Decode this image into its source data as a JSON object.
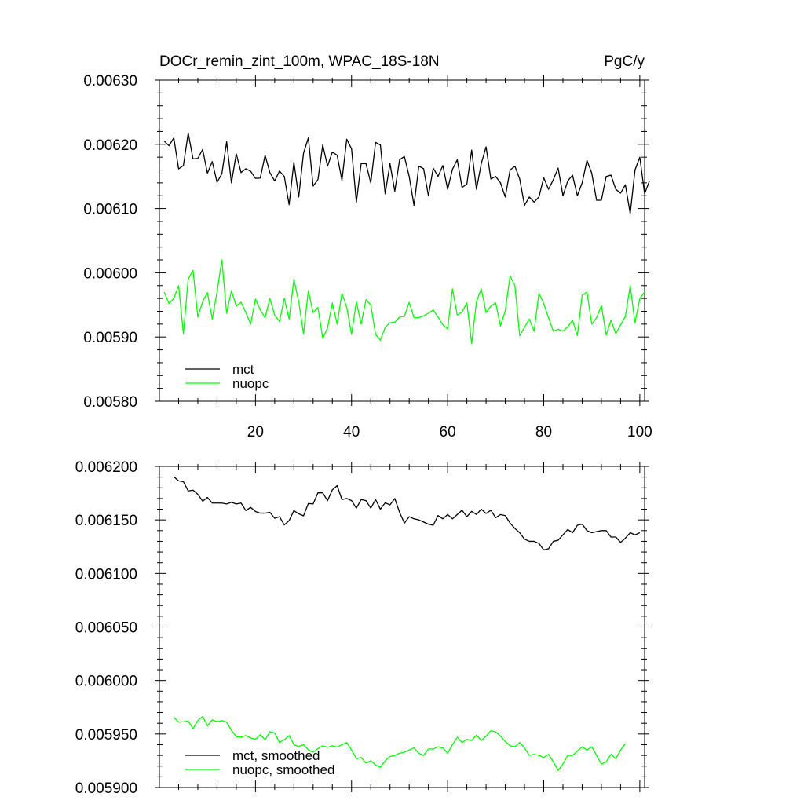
{
  "figure": {
    "title_left": "DOCr_remin_zint_100m, WPAC_18S-18N",
    "title_right": "PgC/y"
  },
  "colors": {
    "mct": "#000000",
    "nuopc": "#00ff00",
    "axis": "#000000"
  },
  "chart_data": [
    {
      "type": "line",
      "xlim": [
        0,
        101
      ],
      "ylim": [
        0.0058,
        0.0063
      ],
      "x_ticks": [
        20,
        40,
        60,
        80,
        100
      ],
      "x_tick_labels": [
        "20",
        "40",
        "60",
        "80",
        "100"
      ],
      "y_ticks": [
        0.0058,
        0.0059,
        0.006,
        0.0061,
        0.0062,
        0.0063
      ],
      "y_tick_labels": [
        "0.00580",
        "0.00590",
        "0.00600",
        "0.00610",
        "0.00620",
        "0.00630"
      ],
      "grid": false,
      "legend_position": "bottom-left",
      "series": [
        {
          "name": "mct",
          "color": "#000000",
          "x_start": 1,
          "values": [
            0.006205,
            0.0061977,
            0.00621,
            0.0061617,
            0.006167,
            0.0062175,
            0.0061773,
            0.006178,
            0.006192,
            0.006155,
            0.0061732,
            0.0061409,
            0.0061541,
            0.0062038,
            0.00614,
            0.0061854,
            0.006156,
            0.006162,
            0.006158,
            0.006147,
            0.0061475,
            0.006183,
            0.006156,
            0.006143,
            0.0061585,
            0.00615,
            0.006106,
            0.0061722,
            0.006118,
            0.006186,
            0.00621,
            0.006135,
            0.006145,
            0.006199,
            0.006166,
            0.006188,
            0.006183,
            0.006144,
            0.006208,
            0.006193,
            0.00611,
            0.00617,
            0.00617,
            0.00614,
            0.006203,
            0.006199,
            0.006123,
            0.00617,
            0.006127,
            0.006176,
            0.006181,
            0.00615,
            0.006105,
            0.006166,
            0.006162,
            0.00612,
            0.006163,
            0.00615,
            0.006167,
            0.00613,
            0.006161,
            0.006176,
            0.006133,
            0.006138,
            0.006191,
            0.00613,
            0.00617,
            0.006196,
            0.006146,
            0.00615,
            0.00614,
            0.006118,
            0.00616,
            0.006166,
            0.006146,
            0.006105,
            0.006118,
            0.00611,
            0.006118,
            0.006148,
            0.00613,
            0.006145,
            0.006163,
            0.00612,
            0.006143,
            0.006152,
            0.00612,
            0.00614,
            0.006175,
            0.006155,
            0.006113,
            0.006113,
            0.00615,
            0.006152,
            0.00613,
            0.006124,
            0.006137,
            0.006092,
            0.00616,
            0.00618,
            0.006123,
            0.006143
          ]
        },
        {
          "name": "nuopc",
          "color": "#00ff00",
          "x_start": 1,
          "values": [
            0.00597,
            0.005952,
            0.00596,
            0.00598,
            0.005905,
            0.00599,
            0.006004,
            0.005931,
            0.005955,
            0.005969,
            0.005928,
            0.00597,
            0.00602,
            0.005937,
            0.005972,
            0.005948,
            0.005954,
            0.005938,
            0.00592,
            0.005959,
            0.005942,
            0.00593,
            0.00596,
            0.005934,
            0.005924,
            0.00596,
            0.005928,
            0.00599,
            0.005955,
            0.005905,
            0.005972,
            0.005938,
            0.005946,
            0.005898,
            0.005914,
            0.005953,
            0.00592,
            0.005968,
            0.005946,
            0.005904,
            0.005955,
            0.00592,
            0.005958,
            0.00595,
            0.005904,
            0.005895,
            0.005915,
            0.005922,
            0.005923,
            0.005931,
            0.005932,
            0.005954,
            0.00593,
            0.00593,
            0.005933,
            0.005937,
            0.005942,
            0.005931,
            0.005919,
            0.005913,
            0.005975,
            0.005934,
            0.005939,
            0.005953,
            0.00589,
            0.005955,
            0.005975,
            0.005938,
            0.005948,
            0.005953,
            0.005917,
            0.005941,
            0.005995,
            0.00598,
            0.005902,
            0.005915,
            0.005928,
            0.005909,
            0.005968,
            0.005952,
            0.00593,
            0.005909,
            0.005912,
            0.005909,
            0.005916,
            0.005926,
            0.005902,
            0.005965,
            0.00597,
            0.00592,
            0.00593,
            0.005949,
            0.005903,
            0.005926,
            0.005905,
            0.005919,
            0.005932,
            0.00598,
            0.005922,
            0.00596,
            0.00597
          ]
        }
      ]
    },
    {
      "type": "line",
      "xlim": [
        0,
        101
      ],
      "ylim": [
        0.0059,
        0.0062
      ],
      "x_ticks": [
        20,
        40,
        60,
        80,
        100
      ],
      "x_tick_labels": [],
      "y_ticks": [
        0.0059,
        0.00595,
        0.006,
        0.00605,
        0.0061,
        0.00615,
        0.0062
      ],
      "y_tick_labels": [
        "0.005900",
        "0.005950",
        "0.006000",
        "0.006050",
        "0.006100",
        "0.006150",
        "0.006200"
      ],
      "grid": false,
      "legend_position": "bottom-left",
      "series": [
        {
          "name": "mct, smoothed",
          "color": "#000000",
          "x_start": 3,
          "values": [
            0.0061904,
            0.0061865,
            0.0061857,
            0.0061771,
            0.0061778,
            0.006174,
            0.0061675,
            0.006171,
            0.0061657,
            0.0061657,
            0.0061657,
            0.0061649,
            0.0061664,
            0.0061649,
            0.0061657,
            0.0061587,
            0.0061617,
            0.0061578,
            0.0061563,
            0.0061563,
            0.0061571,
            0.0061515,
            0.006153,
            0.0061453,
            0.0061493,
            0.0061586,
            0.0061557,
            0.0061538,
            0.0061653,
            0.0061649,
            0.0061753,
            0.0061753,
            0.006168,
            0.0061781,
            0.006182,
            0.006169,
            0.00617,
            0.006168,
            0.006161,
            0.006169,
            0.006168,
            0.006161,
            0.006169,
            0.00616,
            0.006166,
            0.006164,
            0.00617,
            0.006157,
            0.006147,
            0.006153,
            0.006151,
            0.00615,
            0.006148,
            0.006146,
            0.006145,
            0.006154,
            0.006151,
            0.006155,
            0.006151,
            0.006155,
            0.006159,
            0.006153,
            0.006158,
            0.006155,
            0.00616,
            0.006156,
            0.006159,
            0.006152,
            0.006155,
            0.006154,
            0.006147,
            0.006142,
            0.006138,
            0.006132,
            0.00613,
            0.00613,
            0.006128,
            0.006122,
            0.006123,
            0.00613,
            0.006131,
            0.006136,
            0.006141,
            0.006138,
            0.006145,
            0.006146,
            0.00614,
            0.006138,
            0.006139,
            0.00614,
            0.00614,
            0.006134,
            0.006134,
            0.006129,
            0.006133,
            0.006138,
            0.006136,
            0.006138
          ]
        },
        {
          "name": "nuopc, smoothed",
          "color": "#00ff00",
          "x_start": 3,
          "values": [
            0.0059656,
            0.005961,
            0.0059614,
            0.0059621,
            0.005955,
            0.0059625,
            0.0059663,
            0.0059576,
            0.0059631,
            0.0059615,
            0.0059625,
            0.005961,
            0.0059533,
            0.0059475,
            0.005947,
            0.0059485,
            0.0059463,
            0.005945,
            0.0059493,
            0.0059445,
            0.0059521,
            0.005951,
            0.005942,
            0.0059447,
            0.0059485,
            0.00594,
            0.0059383,
            0.00594,
            0.0059353,
            0.005933,
            0.0059363,
            0.005939,
            0.0059375,
            0.005939,
            0.0059377,
            0.00594,
            0.005942,
            0.005935,
            0.005927,
            0.005928,
            0.005923,
            0.005925,
            0.005921,
            0.005919,
            0.005925,
            0.005929,
            0.00593,
            0.005932,
            0.005933,
            0.005935,
            0.005937,
            0.005932,
            0.00593,
            0.005936,
            0.005936,
            0.005938,
            0.005937,
            0.005932,
            0.00594,
            0.005947,
            0.005942,
            0.005945,
            0.005944,
            0.005949,
            0.005944,
            0.005948,
            0.005953,
            0.005952,
            0.005948,
            0.005943,
            0.005939,
            0.005938,
            0.005942,
            0.005937,
            0.00593,
            0.005931,
            0.00593,
            0.005928,
            0.005931,
            0.005924,
            0.005916,
            0.005922,
            0.00593,
            0.00593,
            0.005934,
            0.005938,
            0.005935,
            0.005938,
            0.00593,
            0.005922,
            0.005924,
            0.005931,
            0.005927,
            0.005935,
            0.005941
          ]
        }
      ]
    }
  ]
}
